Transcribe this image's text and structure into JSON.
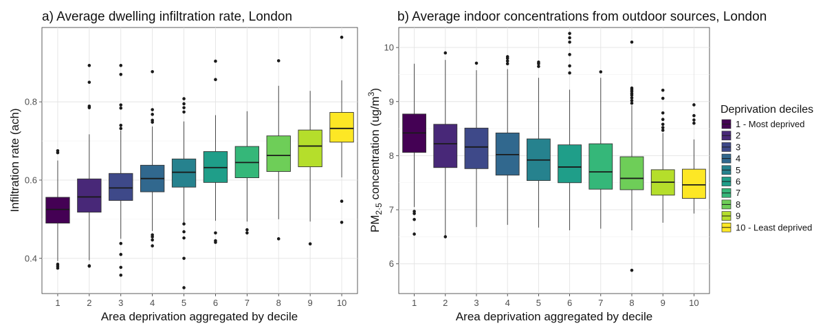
{
  "chart_data": [
    {
      "type": "boxplot",
      "title": "a) Average dwelling infiltration rate, London",
      "xlabel": "Area deprivation aggregated by decile",
      "ylabel": "Infiltration rate (ach)",
      "categories": [
        "1",
        "2",
        "3",
        "4",
        "5",
        "6",
        "7",
        "8",
        "9",
        "10"
      ],
      "ylim": [
        0.31,
        0.99
      ],
      "yticks": [
        0.4,
        0.6,
        0.8
      ],
      "ytick_labels": [
        "0.4",
        "0.6",
        "0.8"
      ],
      "boxes": [
        {
          "q1": 0.49,
          "median": 0.525,
          "q3": 0.556,
          "whisker_low": 0.393,
          "whisker_high": 0.65,
          "outliers": [
            0.375,
            0.38,
            0.385,
            0.67,
            0.675
          ]
        },
        {
          "q1": 0.518,
          "median": 0.557,
          "q3": 0.603,
          "whisker_low": 0.395,
          "whisker_high": 0.717,
          "outliers": [
            0.38,
            0.381,
            0.785,
            0.789,
            0.85,
            0.893
          ]
        },
        {
          "q1": 0.548,
          "median": 0.58,
          "q3": 0.617,
          "whisker_low": 0.45,
          "whisker_high": 0.727,
          "outliers": [
            0.357,
            0.377,
            0.41,
            0.438,
            0.732,
            0.74,
            0.784,
            0.792,
            0.87,
            0.893
          ]
        },
        {
          "q1": 0.57,
          "median": 0.604,
          "q3": 0.638,
          "whisker_low": 0.47,
          "whisker_high": 0.737,
          "outliers": [
            0.432,
            0.447,
            0.455,
            0.46,
            0.748,
            0.753,
            0.768,
            0.78,
            0.877
          ]
        },
        {
          "q1": 0.582,
          "median": 0.62,
          "q3": 0.654,
          "whisker_low": 0.492,
          "whisker_high": 0.75,
          "outliers": [
            0.325,
            0.4,
            0.452,
            0.468,
            0.488,
            0.774,
            0.785,
            0.795,
            0.808
          ]
        },
        {
          "q1": 0.594,
          "median": 0.632,
          "q3": 0.673,
          "whisker_low": 0.496,
          "whisker_high": 0.766,
          "outliers": [
            0.441,
            0.445,
            0.465,
            0.857,
            0.904
          ]
        },
        {
          "q1": 0.606,
          "median": 0.645,
          "q3": 0.686,
          "whisker_low": 0.494,
          "whisker_high": 0.776,
          "outliers": [
            0.465,
            0.473
          ]
        },
        {
          "q1": 0.622,
          "median": 0.663,
          "q3": 0.713,
          "whisker_low": 0.5,
          "whisker_high": 0.841,
          "outliers": [
            0.45,
            0.905
          ]
        },
        {
          "q1": 0.634,
          "median": 0.687,
          "q3": 0.728,
          "whisker_low": 0.494,
          "whisker_high": 0.828,
          "outliers": [
            0.437
          ]
        },
        {
          "q1": 0.697,
          "median": 0.732,
          "q3": 0.773,
          "whisker_low": 0.607,
          "whisker_high": 0.855,
          "outliers": [
            0.492,
            0.546,
            0.965
          ]
        }
      ]
    },
    {
      "type": "boxplot",
      "title": "b) Average indoor concentrations from outdoor sources, London",
      "xlabel": "Area deprivation aggregated by decile",
      "ylabel_parts": {
        "pre": "PM",
        "sub": "2·5",
        "mid": " concentration (ug/m",
        "sup": "3",
        "post": ")"
      },
      "categories": [
        "1",
        "2",
        "3",
        "4",
        "5",
        "6",
        "7",
        "8",
        "9",
        "10"
      ],
      "ylim": [
        5.45,
        10.37
      ],
      "yticks": [
        6,
        7,
        8,
        9,
        10
      ],
      "ytick_labels": [
        "6",
        "7",
        "8",
        "9",
        "10"
      ],
      "boxes": [
        {
          "q1": 8.06,
          "median": 8.42,
          "q3": 8.77,
          "whisker_low": 7.05,
          "whisker_high": 9.7,
          "outliers": [
            6.55,
            6.82,
            6.93,
            6.97
          ]
        },
        {
          "q1": 7.78,
          "median": 8.22,
          "q3": 8.58,
          "whisker_low": 6.52,
          "whisker_high": 9.77,
          "outliers": [
            6.5,
            9.9
          ]
        },
        {
          "q1": 7.76,
          "median": 8.16,
          "q3": 8.51,
          "whisker_low": 6.68,
          "whisker_high": 9.58,
          "outliers": [
            9.71
          ]
        },
        {
          "q1": 7.64,
          "median": 8.02,
          "q3": 8.42,
          "whisker_low": 6.72,
          "whisker_high": 9.6,
          "outliers": [
            9.7,
            9.75,
            9.8,
            9.83
          ]
        },
        {
          "q1": 7.54,
          "median": 7.92,
          "q3": 8.31,
          "whisker_low": 6.67,
          "whisker_high": 9.44,
          "outliers": [
            9.65,
            9.7,
            9.73
          ]
        },
        {
          "q1": 7.5,
          "median": 7.79,
          "q3": 8.2,
          "whisker_low": 6.62,
          "whisker_high": 9.22,
          "outliers": [
            9.53,
            9.66,
            9.87,
            10.1,
            10.18,
            10.26
          ]
        },
        {
          "q1": 7.38,
          "median": 7.7,
          "q3": 8.22,
          "whisker_low": 6.65,
          "whisker_high": 9.44,
          "outliers": [
            9.55
          ]
        },
        {
          "q1": 7.37,
          "median": 7.58,
          "q3": 7.98,
          "whisker_low": 6.62,
          "whisker_high": 8.93,
          "outliers": [
            5.88,
            8.97,
            9.02,
            9.07,
            9.12,
            9.15,
            9.19,
            9.22,
            9.25,
            10.1
          ]
        },
        {
          "q1": 7.27,
          "median": 7.51,
          "q3": 7.74,
          "whisker_low": 6.76,
          "whisker_high": 8.42,
          "outliers": [
            8.47,
            8.52,
            8.58,
            8.67,
            8.79,
            9.06,
            9.21
          ]
        },
        {
          "q1": 7.21,
          "median": 7.46,
          "q3": 7.75,
          "whisker_low": 6.93,
          "whisker_high": 8.3,
          "outliers": [
            8.6,
            8.66,
            8.74,
            8.94
          ]
        }
      ]
    }
  ],
  "legend": {
    "title": "Deprivation deciles",
    "items": [
      {
        "label": "1 - Most deprived",
        "color": "#440154"
      },
      {
        "label": "2",
        "color": "#482878"
      },
      {
        "label": "3",
        "color": "#3e4989"
      },
      {
        "label": "4",
        "color": "#31688e"
      },
      {
        "label": "5",
        "color": "#26828e"
      },
      {
        "label": "6",
        "color": "#1f9e89"
      },
      {
        "label": "7",
        "color": "#35b779"
      },
      {
        "label": "8",
        "color": "#6ece58"
      },
      {
        "label": "9",
        "color": "#b5de2b"
      },
      {
        "label": "10 - Least deprived",
        "color": "#fde725"
      }
    ]
  }
}
